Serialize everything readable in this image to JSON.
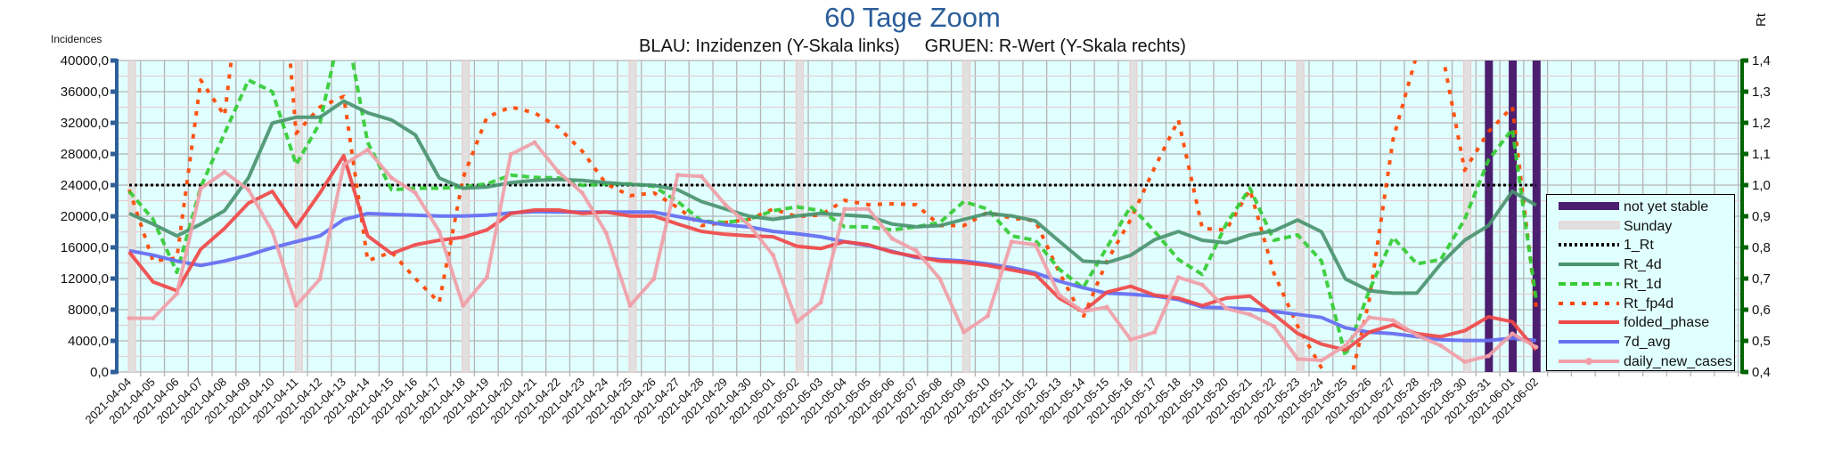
{
  "title": "60 Tage Zoom",
  "subtitle": "BLAU: Inzidenzen (Y-Skala links)     GRUEN: R-Wert (Y-Skala rechts)",
  "chart_data": {
    "type": "line",
    "title": "60 Tage Zoom",
    "subtitle": "BLAU: Inzidenzen (Y-Skala links)     GRUEN: R-Wert (Y-Skala rechts)",
    "ylabel": "Incidences",
    "ylabel_right": "Rt",
    "ylim": [
      0,
      40000
    ],
    "ylim_right": [
      0.4,
      1.4
    ],
    "y_ticks": [
      "0,0",
      "4000,0",
      "8000,0",
      "12000,0",
      "16000,0",
      "20000,0",
      "24000,0",
      "28000,0",
      "32000,0",
      "36000,0",
      "40000,0"
    ],
    "y_ticks_right": [
      "0,4",
      "0,5",
      "0,6",
      "0,7",
      "0,8",
      "0,9",
      "1,0",
      "1,1",
      "1,2",
      "1,3",
      "1,4"
    ],
    "grid": true,
    "legend_position": "bottom-right",
    "x": [
      "2021-04-04",
      "2021-04-05",
      "2021-04-06",
      "2021-04-07",
      "2021-04-08",
      "2021-04-09",
      "2021-04-10",
      "2021-04-11",
      "2021-04-12",
      "2021-04-13",
      "2021-04-14",
      "2021-04-15",
      "2021-04-16",
      "2021-04-17",
      "2021-04-18",
      "2021-04-19",
      "2021-04-20",
      "2021-04-21",
      "2021-04-22",
      "2021-04-23",
      "2021-04-24",
      "2021-04-25",
      "2021-04-26",
      "2021-04-27",
      "2021-04-28",
      "2021-04-29",
      "2021-04-30",
      "2021-05-01",
      "2021-05-02",
      "2021-05-03",
      "2021-05-04",
      "2021-05-05",
      "2021-05-06",
      "2021-05-07",
      "2021-05-08",
      "2021-05-09",
      "2021-05-10",
      "2021-05-11",
      "2021-05-12",
      "2021-05-13",
      "2021-05-14",
      "2021-05-15",
      "2021-05-16",
      "2021-05-17",
      "2021-05-18",
      "2021-05-19",
      "2021-05-20",
      "2021-05-21",
      "2021-05-22",
      "2021-05-23",
      "2021-05-24",
      "2021-05-25",
      "2021-05-26",
      "2021-05-27",
      "2021-05-28",
      "2021-05-29",
      "2021-05-30",
      "2021-05-31",
      "2021-06-01",
      "2021-06-02"
    ],
    "sunday_indices": [
      0,
      7,
      14,
      21,
      28,
      35,
      42,
      49,
      56
    ],
    "not_yet_stable_indices": [
      57,
      58,
      59
    ],
    "reference_line": {
      "name": "1_Rt",
      "axis": "right",
      "value": 1.0
    },
    "series": [
      {
        "name": "Rt_4d",
        "axis": "right",
        "color": "#4a9470",
        "style": "solid",
        "values": [
          0.909,
          0.875,
          0.837,
          0.875,
          0.918,
          1.023,
          1.199,
          1.218,
          1.218,
          1.27,
          1.232,
          1.209,
          1.161,
          1.023,
          0.99,
          0.994,
          1.008,
          1.015,
          1.018,
          1.015,
          1.008,
          1.002,
          0.999,
          0.985,
          0.947,
          0.923,
          0.9,
          0.89,
          0.901,
          0.909,
          0.904,
          0.899,
          0.875,
          0.866,
          0.87,
          0.89,
          0.909,
          0.901,
          0.885,
          0.82,
          0.756,
          0.751,
          0.775,
          0.825,
          0.851,
          0.823,
          0.815,
          0.84,
          0.853,
          0.888,
          0.85,
          0.699,
          0.661,
          0.653,
          0.653,
          0.747,
          0.823,
          0.87,
          0.98,
          0.935
        ]
      },
      {
        "name": "Rt_1d",
        "axis": "right",
        "color": "#33cc33",
        "style": "dashed",
        "values": [
          0.98,
          0.89,
          0.72,
          0.994,
          1.166,
          1.337,
          1.3,
          1.066,
          1.2,
          1.55,
          1.137,
          0.985,
          0.99,
          0.99,
          0.994,
          1.004,
          1.032,
          1.025,
          1.023,
          0.999,
          1.004,
          1.004,
          0.996,
          0.947,
          0.885,
          0.88,
          0.89,
          0.918,
          0.93,
          0.918,
          0.866,
          0.866,
          0.856,
          0.866,
          0.88,
          0.947,
          0.923,
          0.837,
          0.823,
          0.73,
          0.67,
          0.8,
          0.932,
          0.851,
          0.761,
          0.713,
          0.875,
          0.99,
          0.823,
          0.84,
          0.756,
          0.451,
          0.661,
          0.832,
          0.747,
          0.761,
          0.89,
          1.08,
          1.18,
          0.632
        ]
      },
      {
        "name": "Rt_fp4d",
        "axis": "right",
        "color": "#ff4500",
        "style": "dashed-short",
        "values": [
          0.985,
          0.756,
          0.766,
          1.337,
          1.223,
          1.85,
          2.1,
          1.166,
          1.251,
          1.285,
          0.757,
          0.785,
          0.7,
          0.623,
          1.023,
          1.218,
          1.251,
          1.232,
          1.185,
          1.109,
          1.004,
          0.966,
          0.975,
          0.928,
          0.87,
          0.88,
          0.89,
          0.923,
          0.899,
          0.904,
          0.951,
          0.937,
          0.94,
          0.937,
          0.87,
          0.87,
          0.913,
          0.894,
          0.885,
          0.72,
          0.575,
          0.756,
          0.89,
          1.056,
          1.209,
          0.861,
          0.856,
          0.985,
          0.718,
          0.547,
          0.413,
          0.3,
          0.63,
          1.147,
          1.42,
          1.45,
          1.047,
          1.171,
          1.251,
          0.609
        ]
      },
      {
        "name": "folded_phase",
        "axis": "left",
        "color": "#f04848",
        "style": "solid",
        "values": [
          15400,
          11580,
          10440,
          15770,
          18440,
          21680,
          23200,
          18630,
          23010,
          27770,
          17490,
          15200,
          16340,
          16920,
          17300,
          18250,
          20350,
          20800,
          20800,
          20350,
          20540,
          20040,
          20040,
          19010,
          18060,
          17680,
          17490,
          17370,
          16150,
          15850,
          16730,
          16340,
          15390,
          14820,
          14250,
          14060,
          13680,
          13110,
          12530,
          9490,
          7770,
          10250,
          11010,
          9870,
          9490,
          8530,
          9490,
          9750,
          7390,
          4950,
          3580,
          2820,
          5110,
          6060,
          4920,
          4540,
          5300,
          7090,
          6440,
          2820
        ]
      },
      {
        "name": "7d_avg",
        "axis": "left",
        "color": "#6670f2",
        "style": "solid",
        "values": [
          15580,
          15010,
          14250,
          13680,
          14250,
          15010,
          15960,
          16730,
          17490,
          19580,
          20350,
          20230,
          20150,
          20040,
          20040,
          20150,
          20420,
          20610,
          20540,
          20540,
          20540,
          20540,
          20540,
          19960,
          19390,
          18900,
          18630,
          18060,
          17760,
          17370,
          16730,
          16230,
          15470,
          14710,
          14440,
          14250,
          13870,
          13410,
          12730,
          11660,
          10820,
          10130,
          9990,
          9750,
          9300,
          8340,
          8230,
          8080,
          7770,
          7390,
          7010,
          5680,
          5110,
          4920,
          4540,
          4150,
          4040,
          4040,
          4340,
          4040
        ]
      },
      {
        "name": "daily_new_cases",
        "axis": "left",
        "color": "#f0a0a8",
        "style": "solid-marker",
        "values": [
          6900,
          6900,
          10060,
          23580,
          25680,
          23390,
          18060,
          8530,
          11960,
          26630,
          28540,
          24920,
          23010,
          18060,
          8530,
          12150,
          27960,
          29490,
          25680,
          23010,
          17870,
          8530,
          11960,
          25300,
          25110,
          21490,
          18820,
          15010,
          6440,
          8920,
          20920,
          20920,
          17110,
          15580,
          11960,
          5110,
          7200,
          16730,
          16340,
          9870,
          7770,
          8340,
          4150,
          5110,
          12150,
          11200,
          8150,
          7390,
          5870,
          1680,
          1490,
          3390,
          7010,
          6630,
          4720,
          3390,
          1300,
          2060,
          4920,
          3200
        ]
      }
    ],
    "legend": [
      {
        "label": "not yet stable",
        "color": "#4b1e6e",
        "kind": "bar"
      },
      {
        "label": "Sunday",
        "color": "#e0e0e0",
        "kind": "bar-light"
      },
      {
        "label": "1_Rt",
        "color": "#000000",
        "kind": "dotted"
      },
      {
        "label": "Rt_4d",
        "color": "#4a9470",
        "kind": "solid"
      },
      {
        "label": "Rt_1d",
        "color": "#33cc33",
        "kind": "dashed"
      },
      {
        "label": "Rt_fp4d",
        "color": "#ff4500",
        "kind": "dashed-short"
      },
      {
        "label": "folded_phase",
        "color": "#f04848",
        "kind": "solid"
      },
      {
        "label": "7d_avg",
        "color": "#6670f2",
        "kind": "solid"
      },
      {
        "label": "daily_new_cases",
        "color": "#f0a0a8",
        "kind": "solid-marker"
      }
    ]
  }
}
